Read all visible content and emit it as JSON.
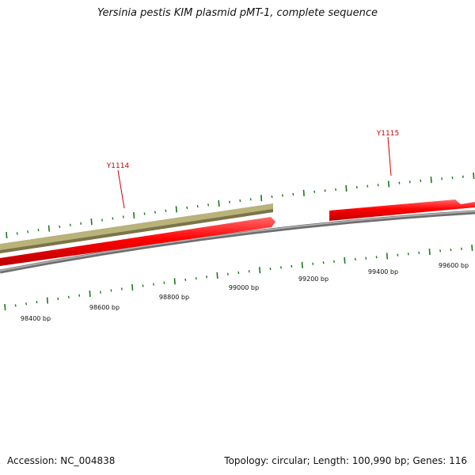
{
  "title": "Yersinia pestis KIM plasmid pMT-1, complete sequence",
  "accession_text": "Accession: NC_004838",
  "summary_text": "Topology: circular; Length: 100,990 bp; Genes: 116",
  "colors": {
    "backbone": "#8c8c8c",
    "forward_gene": "#ff0000",
    "other_feature": "#b9b27a",
    "tick_mark": "#1b7a1b",
    "gene_label": "#cc0000"
  },
  "genes": [
    {
      "name": "Y1114",
      "label": "Y1114"
    },
    {
      "name": "Y1115",
      "label": "Y1115"
    }
  ],
  "tick_labels": [
    "98400 bp",
    "98600 bp",
    "98800 bp",
    "99000 bp",
    "99200 bp",
    "99400 bp",
    "99600 bp"
  ]
}
